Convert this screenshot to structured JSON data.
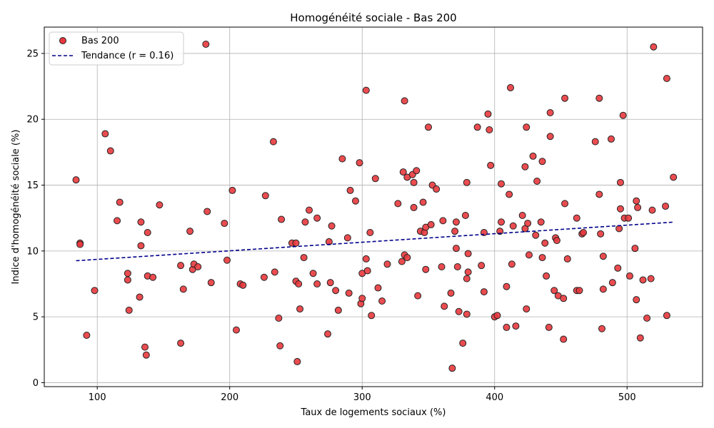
{
  "chart_data": {
    "type": "scatter",
    "title": "Homogénéité sociale - Bas 200",
    "xlabel": "Taux de logements sociaux (%)",
    "ylabel": "Indice d'homogénéité sociale (%)",
    "xlim": [
      60,
      557
    ],
    "ylim": [
      -0.3,
      27
    ],
    "xticks": [
      100,
      200,
      300,
      400,
      500
    ],
    "yticks": [
      0,
      5,
      10,
      15,
      20,
      25
    ],
    "grid": true,
    "legend_position": "top-left",
    "series": [
      {
        "name": "Bas 200",
        "kind": "scatter",
        "color": "#e8383d",
        "edge_color": "#222222",
        "points": [
          [
            84,
            15.4
          ],
          [
            87,
            10.6
          ],
          [
            87,
            10.5
          ],
          [
            92,
            3.6
          ],
          [
            98,
            7.0
          ],
          [
            106,
            18.9
          ],
          [
            110,
            17.6
          ],
          [
            115,
            12.3
          ],
          [
            117,
            13.7
          ],
          [
            123,
            8.3
          ],
          [
            123,
            7.8
          ],
          [
            124,
            5.5
          ],
          [
            132,
            6.5
          ],
          [
            133,
            12.2
          ],
          [
            133,
            10.4
          ],
          [
            136,
            2.7
          ],
          [
            137,
            2.1
          ],
          [
            138,
            11.4
          ],
          [
            138,
            8.1
          ],
          [
            142,
            8.0
          ],
          [
            147,
            13.5
          ],
          [
            163,
            8.9
          ],
          [
            163,
            3.0
          ],
          [
            165,
            7.1
          ],
          [
            170,
            11.5
          ],
          [
            172,
            8.6
          ],
          [
            173,
            9.0
          ],
          [
            176,
            8.8
          ],
          [
            182,
            25.7
          ],
          [
            183,
            13.0
          ],
          [
            186,
            7.6
          ],
          [
            196,
            12.1
          ],
          [
            198,
            9.3
          ],
          [
            202,
            14.6
          ],
          [
            205,
            4.0
          ],
          [
            208,
            7.5
          ],
          [
            210,
            7.4
          ],
          [
            226,
            8.0
          ],
          [
            227,
            14.2
          ],
          [
            233,
            18.3
          ],
          [
            234,
            8.4
          ],
          [
            237,
            4.9
          ],
          [
            238,
            2.8
          ],
          [
            239,
            12.4
          ],
          [
            247,
            10.6
          ],
          [
            250,
            10.6
          ],
          [
            250,
            7.7
          ],
          [
            251,
            1.6
          ],
          [
            252,
            7.5
          ],
          [
            253,
            5.6
          ],
          [
            256,
            9.5
          ],
          [
            257,
            12.2
          ],
          [
            260,
            13.1
          ],
          [
            263,
            8.3
          ],
          [
            266,
            12.5
          ],
          [
            266,
            7.5
          ],
          [
            274,
            3.7
          ],
          [
            275,
            10.7
          ],
          [
            276,
            7.6
          ],
          [
            277,
            11.9
          ],
          [
            280,
            7.0
          ],
          [
            282,
            5.5
          ],
          [
            285,
            17.0
          ],
          [
            289,
            11.0
          ],
          [
            290,
            6.8
          ],
          [
            291,
            14.6
          ],
          [
            295,
            13.8
          ],
          [
            298,
            16.7
          ],
          [
            299,
            6.0
          ],
          [
            300,
            8.3
          ],
          [
            300,
            6.4
          ],
          [
            303,
            22.2
          ],
          [
            303,
            9.4
          ],
          [
            304,
            8.5
          ],
          [
            306,
            11.4
          ],
          [
            307,
            5.1
          ],
          [
            310,
            15.5
          ],
          [
            312,
            7.2
          ],
          [
            315,
            6.2
          ],
          [
            319,
            9.0
          ],
          [
            327,
            13.6
          ],
          [
            330,
            9.2
          ],
          [
            331,
            16.0
          ],
          [
            332,
            21.4
          ],
          [
            332,
            9.7
          ],
          [
            334,
            15.6
          ],
          [
            334,
            9.5
          ],
          [
            338,
            15.8
          ],
          [
            339,
            15.2
          ],
          [
            339,
            13.3
          ],
          [
            341,
            16.1
          ],
          [
            342,
            6.6
          ],
          [
            344,
            11.5
          ],
          [
            346,
            13.7
          ],
          [
            347,
            11.4
          ],
          [
            348,
            11.8
          ],
          [
            348,
            8.6
          ],
          [
            350,
            19.4
          ],
          [
            352,
            12.0
          ],
          [
            353,
            15.0
          ],
          [
            356,
            14.7
          ],
          [
            360,
            8.8
          ],
          [
            361,
            12.3
          ],
          [
            362,
            5.8
          ],
          [
            367,
            6.8
          ],
          [
            368,
            1.1
          ],
          [
            370,
            11.5
          ],
          [
            371,
            12.2
          ],
          [
            371,
            10.2
          ],
          [
            372,
            8.8
          ],
          [
            373,
            5.4
          ],
          [
            376,
            3.0
          ],
          [
            378,
            12.7
          ],
          [
            379,
            15.2
          ],
          [
            379,
            7.9
          ],
          [
            379,
            5.2
          ],
          [
            380,
            9.8
          ],
          [
            380,
            8.4
          ],
          [
            387,
            19.4
          ],
          [
            390,
            8.9
          ],
          [
            392,
            11.4
          ],
          [
            392,
            6.9
          ],
          [
            395,
            20.4
          ],
          [
            396,
            19.2
          ],
          [
            397,
            16.5
          ],
          [
            400,
            5.0
          ],
          [
            402,
            5.1
          ],
          [
            404,
            11.5
          ],
          [
            405,
            15.1
          ],
          [
            405,
            12.2
          ],
          [
            409,
            7.3
          ],
          [
            409,
            4.2
          ],
          [
            411,
            14.3
          ],
          [
            412,
            22.4
          ],
          [
            413,
            9.0
          ],
          [
            414,
            11.9
          ],
          [
            416,
            4.3
          ],
          [
            421,
            12.7
          ],
          [
            423,
            16.4
          ],
          [
            423,
            11.7
          ],
          [
            424,
            19.4
          ],
          [
            424,
            5.6
          ],
          [
            425,
            12.1
          ],
          [
            426,
            9.7
          ],
          [
            429,
            17.2
          ],
          [
            431,
            11.2
          ],
          [
            432,
            15.3
          ],
          [
            435,
            12.2
          ],
          [
            436,
            16.8
          ],
          [
            436,
            9.5
          ],
          [
            438,
            10.6
          ],
          [
            439,
            8.1
          ],
          [
            441,
            4.2
          ],
          [
            442,
            20.5
          ],
          [
            442,
            18.7
          ],
          [
            445,
            7.0
          ],
          [
            446,
            11.0
          ],
          [
            447,
            10.8
          ],
          [
            448,
            6.6
          ],
          [
            452,
            6.4
          ],
          [
            452,
            3.3
          ],
          [
            453,
            21.6
          ],
          [
            453,
            13.6
          ],
          [
            455,
            9.4
          ],
          [
            462,
            12.5
          ],
          [
            462,
            7.0
          ],
          [
            464,
            7.0
          ],
          [
            466,
            11.3
          ],
          [
            467,
            11.4
          ],
          [
            476,
            18.3
          ],
          [
            479,
            21.6
          ],
          [
            479,
            14.3
          ],
          [
            480,
            11.3
          ],
          [
            481,
            4.1
          ],
          [
            482,
            9.6
          ],
          [
            482,
            7.1
          ],
          [
            488,
            18.5
          ],
          [
            489,
            7.6
          ],
          [
            493,
            8.7
          ],
          [
            494,
            11.7
          ],
          [
            495,
            15.2
          ],
          [
            495,
            13.2
          ],
          [
            497,
            20.3
          ],
          [
            498,
            12.5
          ],
          [
            501,
            12.5
          ],
          [
            502,
            8.1
          ],
          [
            506,
            10.2
          ],
          [
            507,
            13.8
          ],
          [
            507,
            6.3
          ],
          [
            508,
            13.3
          ],
          [
            510,
            3.4
          ],
          [
            512,
            7.8
          ],
          [
            515,
            4.9
          ],
          [
            518,
            7.9
          ],
          [
            519,
            13.1
          ],
          [
            520,
            25.5
          ],
          [
            529,
            13.4
          ],
          [
            530,
            5.1
          ],
          [
            530,
            23.1
          ],
          [
            535,
            15.6
          ]
        ]
      },
      {
        "name": "Tendance (r = 0.16)",
        "kind": "line",
        "color": "#00008b",
        "points": [
          [
            84,
            9.26
          ],
          [
            535,
            12.19
          ]
        ]
      }
    ]
  }
}
